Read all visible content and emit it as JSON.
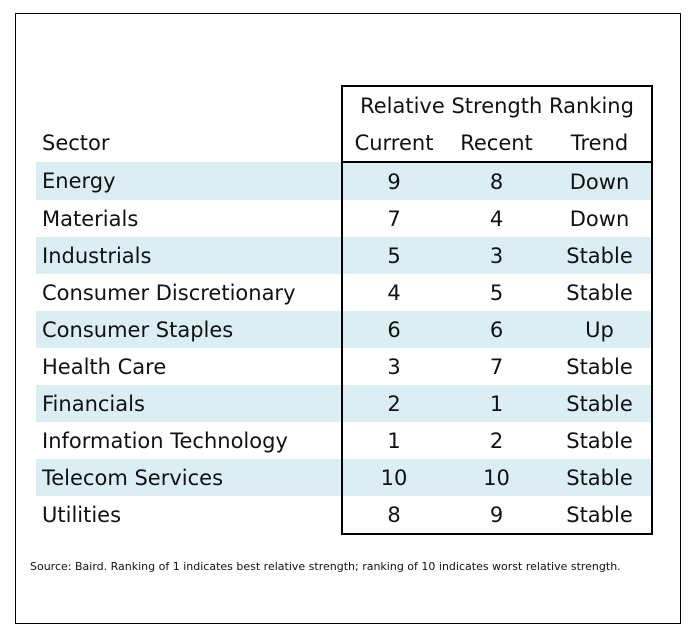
{
  "table": {
    "group_header": "Relative Strength Ranking",
    "columns": {
      "sector": "Sector",
      "current": "Current",
      "recent": "Recent",
      "trend": "Trend"
    },
    "rows": [
      {
        "sector": "Energy",
        "current": "9",
        "recent": "8",
        "trend": "Down"
      },
      {
        "sector": "Materials",
        "current": "7",
        "recent": "4",
        "trend": "Down"
      },
      {
        "sector": "Industrials",
        "current": "5",
        "recent": "3",
        "trend": "Stable"
      },
      {
        "sector": "Consumer Discretionary",
        "current": "4",
        "recent": "5",
        "trend": "Stable"
      },
      {
        "sector": "Consumer Staples",
        "current": "6",
        "recent": "6",
        "trend": "Up"
      },
      {
        "sector": "Health Care",
        "current": "3",
        "recent": "7",
        "trend": "Stable"
      },
      {
        "sector": "Financials",
        "current": "2",
        "recent": "1",
        "trend": "Stable"
      },
      {
        "sector": "Information Technology",
        "current": "1",
        "recent": "2",
        "trend": "Stable"
      },
      {
        "sector": "Telecom Services",
        "current": "10",
        "recent": "10",
        "trend": "Stable"
      },
      {
        "sector": "Utilities",
        "current": "8",
        "recent": "9",
        "trend": "Stable"
      }
    ],
    "shade_color": "#daeef3"
  },
  "footnote": "Source: Baird. Ranking of 1 indicates best relative strength; ranking of 10 indicates worst relative strength."
}
